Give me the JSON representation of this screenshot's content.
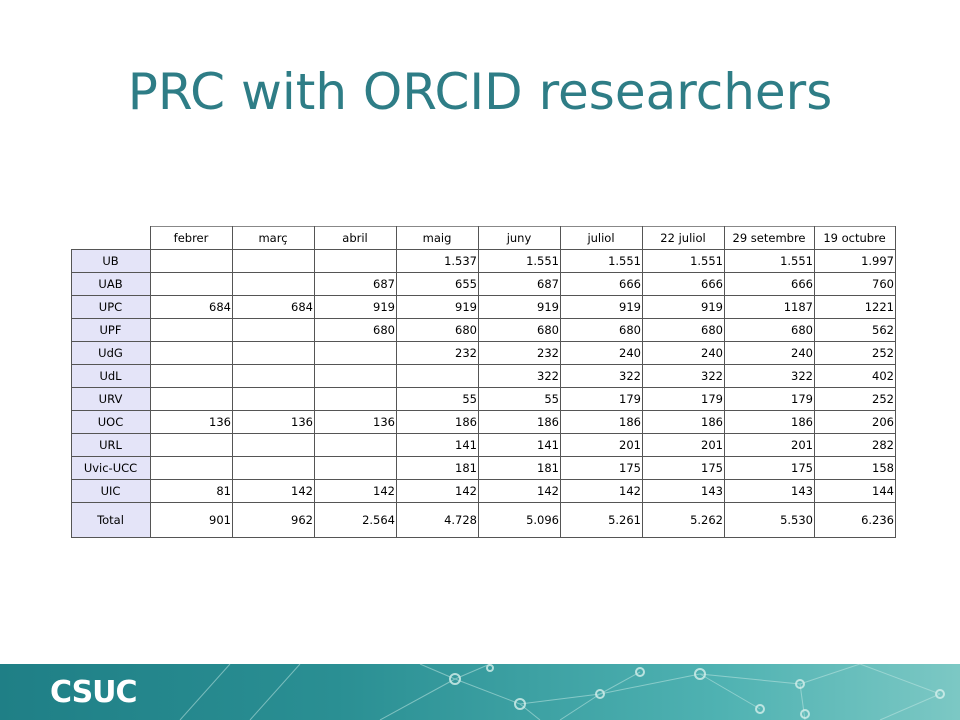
{
  "slide": {
    "title": "PRC with ORCID researchers"
  },
  "table": {
    "columns": [
      "febrer",
      "març",
      "abril",
      "maig",
      "juny",
      "juliol",
      "22 juliol",
      "29 setembre",
      "19 octubre"
    ],
    "rows": [
      {
        "label": "UB",
        "values": [
          "",
          "",
          "",
          "1.537",
          "1.551",
          "1.551",
          "1.551",
          "1.551",
          "1.997"
        ]
      },
      {
        "label": "UAB",
        "values": [
          "",
          "",
          "687",
          "655",
          "687",
          "666",
          "666",
          "666",
          "760"
        ]
      },
      {
        "label": "UPC",
        "values": [
          "684",
          "684",
          "919",
          "919",
          "919",
          "919",
          "919",
          "1187",
          "1221"
        ]
      },
      {
        "label": "UPF",
        "values": [
          "",
          "",
          "680",
          "680",
          "680",
          "680",
          "680",
          "680",
          "562"
        ]
      },
      {
        "label": "UdG",
        "values": [
          "",
          "",
          "",
          "232",
          "232",
          "240",
          "240",
          "240",
          "252"
        ]
      },
      {
        "label": "UdL",
        "values": [
          "",
          "",
          "",
          "",
          "322",
          "322",
          "322",
          "322",
          "402"
        ]
      },
      {
        "label": "URV",
        "values": [
          "",
          "",
          "",
          "55",
          "55",
          "179",
          "179",
          "179",
          "252"
        ]
      },
      {
        "label": "UOC",
        "values": [
          "136",
          "136",
          "136",
          "186",
          "186",
          "186",
          "186",
          "186",
          "206"
        ]
      },
      {
        "label": "URL",
        "values": [
          "",
          "",
          "",
          "141",
          "141",
          "201",
          "201",
          "201",
          "282"
        ]
      },
      {
        "label": "Uvic-UCC",
        "values": [
          "",
          "",
          "",
          "181",
          "181",
          "175",
          "175",
          "175",
          "158"
        ]
      },
      {
        "label": "UIC",
        "values": [
          "81",
          "142",
          "142",
          "142",
          "142",
          "142",
          "143",
          "143",
          "144"
        ]
      }
    ],
    "total": {
      "label": "Total",
      "values": [
        "901",
        "962",
        "2.564",
        "4.728",
        "5.096",
        "5.261",
        "5.262",
        "5.530",
        "6.236"
      ]
    }
  },
  "footer": {
    "logo_text": "CSUC",
    "background_color": "#2a8f93"
  }
}
